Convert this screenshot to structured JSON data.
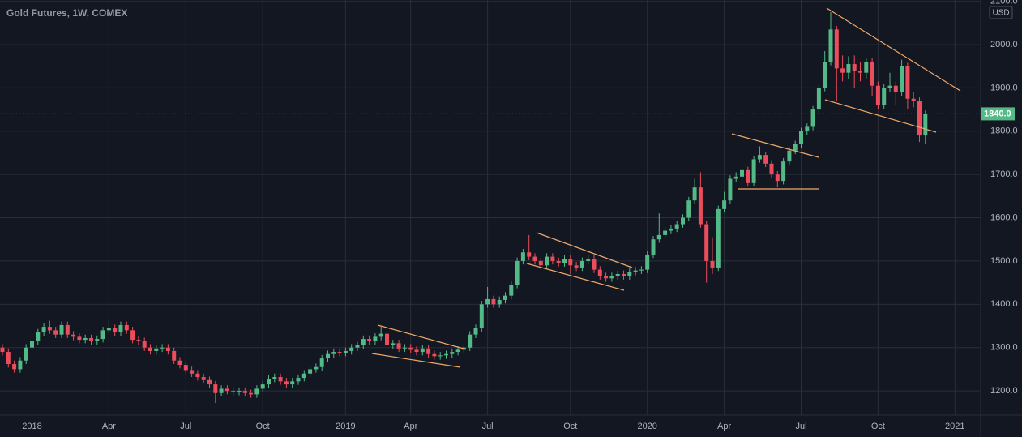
{
  "chart_data": {
    "type": "candlestick",
    "title": "Gold Futures, 1W, COMEX",
    "currency": "USD",
    "last_price_label": "1840.0",
    "up_color": "#53b987",
    "down_color": "#eb4d5c",
    "grid": true,
    "ylim": [
      1144,
      2103
    ],
    "yticks": [
      {
        "value": 1200,
        "label": "1200.0"
      },
      {
        "value": 1300,
        "label": "1300.0"
      },
      {
        "value": 1400,
        "label": "1400.0"
      },
      {
        "value": 1500,
        "label": "1500.0"
      },
      {
        "value": 1600,
        "label": "1600.0"
      },
      {
        "value": 1700,
        "label": "1700.0"
      },
      {
        "value": 1800,
        "label": "1800.0"
      },
      {
        "value": 1900,
        "label": "1900.0"
      },
      {
        "value": 2000,
        "label": "2000.0"
      },
      {
        "value": 2100,
        "label": "2100.0"
      }
    ],
    "categories": [
      null,
      null,
      null,
      null,
      null,
      "2018",
      null,
      null,
      null,
      null,
      null,
      null,
      null,
      null,
      null,
      null,
      null,
      null,
      "Apr",
      null,
      null,
      null,
      null,
      null,
      null,
      null,
      null,
      null,
      null,
      null,
      null,
      "Jul",
      null,
      null,
      null,
      null,
      null,
      null,
      null,
      null,
      null,
      null,
      null,
      null,
      "Oct",
      null,
      null,
      null,
      null,
      null,
      null,
      null,
      null,
      null,
      null,
      null,
      null,
      null,
      "2019",
      null,
      null,
      null,
      null,
      null,
      null,
      null,
      null,
      null,
      null,
      "Apr",
      null,
      null,
      null,
      null,
      null,
      null,
      null,
      null,
      null,
      null,
      null,
      null,
      "Jul",
      null,
      null,
      null,
      null,
      null,
      null,
      null,
      null,
      null,
      null,
      null,
      null,
      null,
      "Oct",
      null,
      null,
      null,
      null,
      null,
      null,
      null,
      null,
      null,
      null,
      null,
      null,
      "2020",
      null,
      null,
      null,
      null,
      null,
      null,
      null,
      null,
      null,
      null,
      null,
      null,
      "Apr",
      null,
      null,
      null,
      null,
      null,
      null,
      null,
      null,
      null,
      null,
      null,
      null,
      "Jul",
      null,
      null,
      null,
      null,
      null,
      null,
      null,
      null,
      null,
      null,
      null,
      null,
      "Oct",
      null,
      null,
      null,
      null,
      null,
      null,
      null,
      null,
      null,
      null,
      null,
      null,
      "2021"
    ],
    "open": [
      1300,
      1290,
      1262,
      1250,
      1270,
      1300,
      1315,
      1335,
      1348,
      1340,
      1330,
      1352,
      1330,
      1325,
      1318,
      1322,
      1315,
      1320,
      1340,
      1345,
      1335,
      1352,
      1340,
      1318,
      1315,
      1300,
      1292,
      1298,
      1300,
      1292,
      1270,
      1260,
      1248,
      1240,
      1232,
      1225,
      1215,
      1195,
      1205,
      1200,
      1198,
      1200,
      1195,
      1192,
      1205,
      1215,
      1228,
      1232,
      1222,
      1215,
      1222,
      1230,
      1240,
      1250,
      1255,
      1275,
      1285,
      1290,
      1288,
      1292,
      1300,
      1305,
      1320,
      1315,
      1325,
      1332,
      1305,
      1310,
      1298,
      1300,
      1295,
      1290,
      1298,
      1285,
      1280,
      1282,
      1285,
      1290,
      1295,
      1300,
      1330,
      1345,
      1400,
      1412,
      1400,
      1410,
      1420,
      1445,
      1500,
      1520,
      1510,
      1500,
      1490,
      1510,
      1500,
      1495,
      1505,
      1490,
      1485,
      1500,
      1505,
      1480,
      1465,
      1460,
      1465,
      1470,
      1465,
      1475,
      1478,
      1480,
      1515,
      1550,
      1560,
      1570,
      1575,
      1585,
      1600,
      1640,
      1670,
      1585,
      1500,
      1485,
      1620,
      1640,
      1690,
      1695,
      1710,
      1680,
      1735,
      1745,
      1725,
      1700,
      1685,
      1730,
      1755,
      1770,
      1800,
      1810,
      1850,
      1900,
      1960,
      2035,
      1945,
      1935,
      1955,
      1940,
      1935,
      1960,
      1905,
      1860,
      1900,
      1905,
      1890,
      1950,
      1875,
      1870,
      1790,
      null,
      null,
      null,
      null,
      null
    ],
    "high": [
      1308,
      1298,
      1270,
      1278,
      1308,
      1323,
      1343,
      1356,
      1362,
      1348,
      1360,
      1360,
      1338,
      1333,
      1330,
      1330,
      1328,
      1348,
      1365,
      1353,
      1360,
      1360,
      1348,
      1326,
      1323,
      1308,
      1306,
      1308,
      1308,
      1300,
      1278,
      1268,
      1256,
      1248,
      1240,
      1233,
      1223,
      1213,
      1213,
      1208,
      1208,
      1208,
      1203,
      1213,
      1223,
      1236,
      1240,
      1240,
      1230,
      1230,
      1238,
      1248,
      1258,
      1263,
      1283,
      1293,
      1298,
      1298,
      1300,
      1308,
      1313,
      1328,
      1328,
      1333,
      1348,
      1340,
      1318,
      1318,
      1308,
      1308,
      1303,
      1306,
      1306,
      1293,
      1290,
      1293,
      1298,
      1303,
      1308,
      1338,
      1353,
      1408,
      1440,
      1420,
      1418,
      1428,
      1453,
      1508,
      1528,
      1560,
      1518,
      1508,
      1518,
      1518,
      1508,
      1513,
      1513,
      1498,
      1508,
      1513,
      1513,
      1488,
      1473,
      1473,
      1478,
      1478,
      1483,
      1486,
      1488,
      1523,
      1558,
      1610,
      1578,
      1583,
      1593,
      1608,
      1648,
      1690,
      1705,
      1593,
      1555,
      1628,
      1660,
      1698,
      1705,
      1740,
      1718,
      1743,
      1765,
      1753,
      1733,
      1708,
      1738,
      1763,
      1778,
      1808,
      1818,
      1858,
      1908,
      1985,
      2075,
      2043,
      1975,
      1973,
      1975,
      1960,
      1968,
      1970,
      1915,
      1910,
      1935,
      1915,
      1965,
      1958,
      1890,
      1878,
      1848,
      null,
      null,
      null,
      null,
      null
    ],
    "low": [
      1282,
      1254,
      1242,
      1242,
      1262,
      1292,
      1307,
      1327,
      1332,
      1322,
      1322,
      1322,
      1317,
      1310,
      1310,
      1307,
      1307,
      1312,
      1332,
      1327,
      1327,
      1332,
      1310,
      1307,
      1292,
      1284,
      1284,
      1290,
      1284,
      1262,
      1252,
      1240,
      1232,
      1224,
      1217,
      1207,
      1172,
      1187,
      1192,
      1190,
      1190,
      1187,
      1184,
      1184,
      1197,
      1207,
      1220,
      1214,
      1207,
      1207,
      1214,
      1222,
      1232,
      1242,
      1247,
      1267,
      1277,
      1280,
      1280,
      1284,
      1292,
      1297,
      1307,
      1307,
      1317,
      1297,
      1297,
      1290,
      1290,
      1287,
      1282,
      1282,
      1277,
      1272,
      1272,
      1274,
      1277,
      1282,
      1287,
      1292,
      1322,
      1337,
      1392,
      1392,
      1392,
      1402,
      1412,
      1437,
      1492,
      1502,
      1492,
      1482,
      1482,
      1492,
      1487,
      1487,
      1470,
      1477,
      1477,
      1492,
      1472,
      1457,
      1452,
      1452,
      1457,
      1457,
      1457,
      1467,
      1470,
      1472,
      1507,
      1542,
      1552,
      1562,
      1567,
      1577,
      1592,
      1632,
      1577,
      1450,
      1470,
      1477,
      1612,
      1632,
      1682,
      1687,
      1672,
      1672,
      1727,
      1717,
      1692,
      1670,
      1677,
      1722,
      1747,
      1762,
      1792,
      1802,
      1842,
      1892,
      1952,
      1870,
      1915,
      1920,
      1900,
      1915,
      1920,
      1880,
      1850,
      1852,
      1890,
      1860,
      1880,
      1850,
      1855,
      1775,
      1770,
      null,
      null,
      null,
      null,
      null
    ],
    "close": [
      1290,
      1262,
      1250,
      1270,
      1300,
      1315,
      1335,
      1348,
      1340,
      1330,
      1352,
      1330,
      1325,
      1318,
      1322,
      1315,
      1320,
      1340,
      1345,
      1335,
      1352,
      1340,
      1318,
      1315,
      1300,
      1292,
      1298,
      1300,
      1292,
      1270,
      1260,
      1248,
      1240,
      1232,
      1225,
      1215,
      1195,
      1205,
      1200,
      1198,
      1200,
      1195,
      1192,
      1205,
      1215,
      1228,
      1232,
      1222,
      1215,
      1222,
      1230,
      1240,
      1250,
      1255,
      1275,
      1285,
      1290,
      1288,
      1292,
      1300,
      1305,
      1320,
      1315,
      1325,
      1332,
      1305,
      1310,
      1298,
      1300,
      1295,
      1290,
      1298,
      1285,
      1280,
      1282,
      1285,
      1290,
      1295,
      1300,
      1330,
      1345,
      1400,
      1412,
      1400,
      1410,
      1420,
      1445,
      1500,
      1520,
      1510,
      1500,
      1490,
      1510,
      1500,
      1495,
      1505,
      1490,
      1485,
      1500,
      1505,
      1480,
      1465,
      1460,
      1465,
      1470,
      1465,
      1475,
      1478,
      1480,
      1515,
      1550,
      1560,
      1570,
      1575,
      1585,
      1600,
      1640,
      1670,
      1585,
      1500,
      1485,
      1620,
      1640,
      1690,
      1695,
      1710,
      1680,
      1735,
      1745,
      1725,
      1700,
      1685,
      1730,
      1755,
      1770,
      1800,
      1810,
      1850,
      1900,
      1960,
      2035,
      1945,
      1935,
      1955,
      1940,
      1935,
      1960,
      1905,
      1860,
      1900,
      1905,
      1890,
      1950,
      1875,
      1870,
      1790,
      1840,
      null,
      null,
      null,
      null,
      null
    ]
  }
}
